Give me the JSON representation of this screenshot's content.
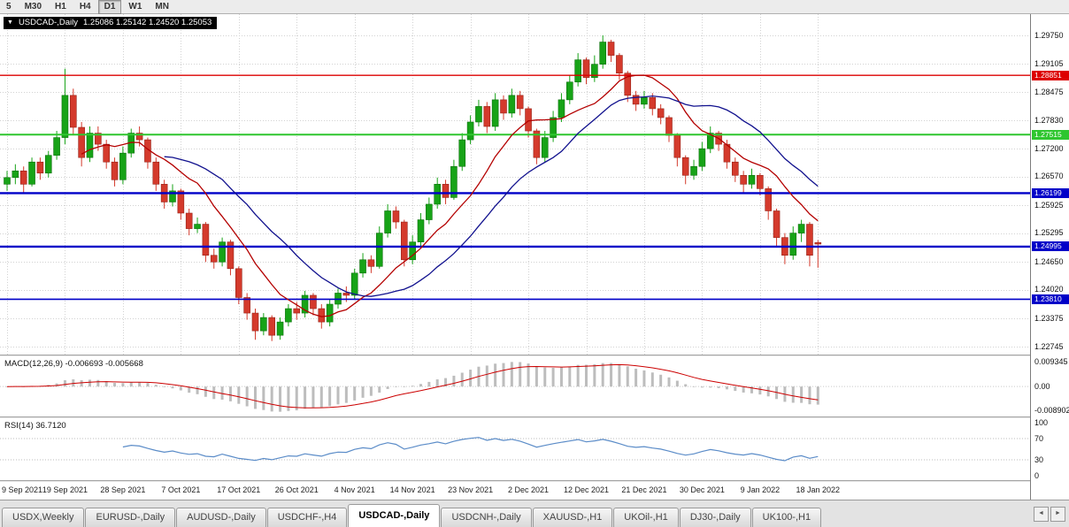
{
  "toolbar": {
    "timeframes": [
      {
        "label": "5",
        "active": false
      },
      {
        "label": "M30",
        "active": false
      },
      {
        "label": "H1",
        "active": false
      },
      {
        "label": "H4",
        "active": false
      },
      {
        "label": "D1",
        "active": true
      },
      {
        "label": "W1",
        "active": false
      },
      {
        "label": "MN",
        "active": false
      }
    ]
  },
  "chart_title": {
    "dropdown_icon": "▼",
    "symbol": "USDCAD-,Daily",
    "ohlc": "1.25086 1.25142 1.24520 1.25053"
  },
  "chart_data": {
    "type": "candlestick",
    "symbol": "USDCAD",
    "timeframe": "Daily",
    "y_axis_labels": [
      "1.29750",
      "1.29105",
      "1.28475",
      "1.27830",
      "1.27200",
      "1.26570",
      "1.25925",
      "1.25295",
      "1.24650",
      "1.24020",
      "1.23375",
      "1.22745"
    ],
    "y_top": 1.2975,
    "y_bottom": 1.22745,
    "x_labels": [
      "9 Sep 2021",
      "19 Sep 2021",
      "28 Sep 2021",
      "7 Oct 2021",
      "17 Oct 2021",
      "26 Oct 2021",
      "4 Nov 2021",
      "14 Nov 2021",
      "23 Nov 2021",
      "2 Dec 2021",
      "12 Dec 2021",
      "21 Dec 2021",
      "30 Dec 2021",
      "9 Jan 2022",
      "18 Jan 2022"
    ],
    "bars_per_label": 7,
    "hlines": [
      {
        "value": 1.28851,
        "label": "1.28851",
        "color": "#dd0000",
        "width": 1.4
      },
      {
        "value": 1.27515,
        "label": "1.27515",
        "color": "#2fc62f",
        "width": 2.0
      },
      {
        "value": 1.26199,
        "label": "1.26199",
        "color": "#0000c8",
        "width": 2.4
      },
      {
        "value": 1.24995,
        "label": "1.24995",
        "color": "#0000c8",
        "width": 2.4
      },
      {
        "value": 1.2381,
        "label": "1.23810",
        "color": "#0000c8",
        "width": 1.6
      }
    ],
    "colors": {
      "up": "#17a317",
      "up_edge": "#0c700c",
      "down": "#d43a2c",
      "down_edge": "#962318",
      "ma_fast": "#b40000",
      "ma_slow": "#11118e",
      "grid": "#d2d2d2"
    },
    "ma_fast_period": 10,
    "ma_slow_period": 20,
    "candles": [
      [
        1.264,
        1.267,
        1.2625,
        1.2655
      ],
      [
        1.2655,
        1.2685,
        1.264,
        1.267
      ],
      [
        1.267,
        1.268,
        1.262,
        1.264
      ],
      [
        1.264,
        1.27,
        1.2635,
        1.269
      ],
      [
        1.269,
        1.27,
        1.265,
        1.2665
      ],
      [
        1.2665,
        1.2715,
        1.2655,
        1.2705
      ],
      [
        1.2705,
        1.276,
        1.2695,
        1.2745
      ],
      [
        1.2745,
        1.29,
        1.273,
        1.284
      ],
      [
        1.284,
        1.2855,
        1.275,
        1.2768
      ],
      [
        1.2768,
        1.278,
        1.268,
        1.27
      ],
      [
        1.27,
        1.277,
        1.269,
        1.2755
      ],
      [
        1.2755,
        1.277,
        1.2715,
        1.273
      ],
      [
        1.273,
        1.274,
        1.2675,
        1.269
      ],
      [
        1.269,
        1.27,
        1.2635,
        1.265
      ],
      [
        1.265,
        1.2725,
        1.264,
        1.271
      ],
      [
        1.271,
        1.2765,
        1.27,
        1.2755
      ],
      [
        1.2755,
        1.277,
        1.2725,
        1.274
      ],
      [
        1.274,
        1.2745,
        1.2675,
        1.269
      ],
      [
        1.269,
        1.27,
        1.2625,
        1.264
      ],
      [
        1.264,
        1.265,
        1.2585,
        1.26
      ],
      [
        1.26,
        1.264,
        1.259,
        1.2625
      ],
      [
        1.2625,
        1.263,
        1.256,
        1.2575
      ],
      [
        1.2575,
        1.2585,
        1.2525,
        1.254
      ],
      [
        1.254,
        1.2565,
        1.253,
        1.255
      ],
      [
        1.255,
        1.2555,
        1.2465,
        1.248
      ],
      [
        1.248,
        1.2495,
        1.245,
        1.2465
      ],
      [
        1.2465,
        1.252,
        1.2455,
        1.251
      ],
      [
        1.251,
        1.2515,
        1.2435,
        1.245
      ],
      [
        1.245,
        1.2455,
        1.237,
        1.2385
      ],
      [
        1.2385,
        1.2395,
        1.2335,
        1.235
      ],
      [
        1.235,
        1.236,
        1.229,
        1.231
      ],
      [
        1.231,
        1.235,
        1.23,
        1.234
      ],
      [
        1.234,
        1.2345,
        1.2287,
        1.23
      ],
      [
        1.23,
        1.234,
        1.229,
        1.233
      ],
      [
        1.233,
        1.237,
        1.232,
        1.236
      ],
      [
        1.236,
        1.2375,
        1.2335,
        1.235
      ],
      [
        1.235,
        1.24,
        1.234,
        1.239
      ],
      [
        1.239,
        1.2395,
        1.2345,
        1.236
      ],
      [
        1.236,
        1.237,
        1.2315,
        1.233
      ],
      [
        1.233,
        1.238,
        1.232,
        1.237
      ],
      [
        1.237,
        1.2405,
        1.236,
        1.2395
      ],
      [
        1.2395,
        1.241,
        1.2375,
        1.239
      ],
      [
        1.239,
        1.245,
        1.238,
        1.244
      ],
      [
        1.244,
        1.2485,
        1.243,
        1.247
      ],
      [
        1.247,
        1.248,
        1.244,
        1.2455
      ],
      [
        1.2455,
        1.2545,
        1.245,
        1.253
      ],
      [
        1.253,
        1.2595,
        1.252,
        1.258
      ],
      [
        1.258,
        1.259,
        1.254,
        1.2555
      ],
      [
        1.2555,
        1.256,
        1.2455,
        1.247
      ],
      [
        1.247,
        1.2525,
        1.246,
        1.251
      ],
      [
        1.251,
        1.2575,
        1.25,
        1.256
      ],
      [
        1.256,
        1.261,
        1.255,
        1.2595
      ],
      [
        1.2595,
        1.2655,
        1.2585,
        1.264
      ],
      [
        1.264,
        1.265,
        1.2595,
        1.261
      ],
      [
        1.261,
        1.2695,
        1.2605,
        1.268
      ],
      [
        1.268,
        1.2755,
        1.267,
        1.274
      ],
      [
        1.274,
        1.2795,
        1.273,
        1.278
      ],
      [
        1.278,
        1.283,
        1.277,
        1.2815
      ],
      [
        1.2815,
        1.2825,
        1.2755,
        1.277
      ],
      [
        1.277,
        1.2845,
        1.276,
        1.283
      ],
      [
        1.283,
        1.284,
        1.2785,
        1.28
      ],
      [
        1.28,
        1.2855,
        1.279,
        1.284
      ],
      [
        1.284,
        1.285,
        1.2795,
        1.281
      ],
      [
        1.281,
        1.2815,
        1.2745,
        1.276
      ],
      [
        1.276,
        1.2765,
        1.2685,
        1.27
      ],
      [
        1.27,
        1.276,
        1.269,
        1.2745
      ],
      [
        1.2745,
        1.2805,
        1.2735,
        1.279
      ],
      [
        1.279,
        1.2845,
        1.278,
        1.283
      ],
      [
        1.283,
        1.2885,
        1.282,
        1.287
      ],
      [
        1.287,
        1.2935,
        1.286,
        1.292
      ],
      [
        1.292,
        1.2925,
        1.2865,
        1.288
      ],
      [
        1.288,
        1.293,
        1.287,
        1.291
      ],
      [
        1.291,
        1.2975,
        1.29,
        1.296
      ],
      [
        1.296,
        1.2965,
        1.2915,
        1.293
      ],
      [
        1.293,
        1.2935,
        1.2875,
        1.289
      ],
      [
        1.289,
        1.2895,
        1.2825,
        1.284
      ],
      [
        1.284,
        1.285,
        1.2805,
        1.282
      ],
      [
        1.282,
        1.285,
        1.281,
        1.2835
      ],
      [
        1.2835,
        1.2845,
        1.2795,
        1.281
      ],
      [
        1.281,
        1.282,
        1.2775,
        1.279
      ],
      [
        1.279,
        1.2795,
        1.2735,
        1.275
      ],
      [
        1.275,
        1.2755,
        1.268,
        1.27
      ],
      [
        1.27,
        1.2705,
        1.264,
        1.266
      ],
      [
        1.266,
        1.2695,
        1.265,
        1.268
      ],
      [
        1.268,
        1.2735,
        1.267,
        1.272
      ],
      [
        1.272,
        1.277,
        1.271,
        1.2755
      ],
      [
        1.2755,
        1.276,
        1.2715,
        1.273
      ],
      [
        1.273,
        1.274,
        1.2675,
        1.269
      ],
      [
        1.269,
        1.27,
        1.2645,
        1.266
      ],
      [
        1.266,
        1.267,
        1.262,
        1.264
      ],
      [
        1.264,
        1.2675,
        1.263,
        1.266
      ],
      [
        1.266,
        1.2665,
        1.2615,
        1.263
      ],
      [
        1.263,
        1.2635,
        1.256,
        1.258
      ],
      [
        1.258,
        1.2585,
        1.25,
        1.252
      ],
      [
        1.252,
        1.253,
        1.246,
        1.248
      ],
      [
        1.248,
        1.2545,
        1.247,
        1.253
      ],
      [
        1.253,
        1.256,
        1.251,
        1.255
      ],
      [
        1.255,
        1.2555,
        1.2455,
        1.248
      ],
      [
        1.25086,
        1.25142,
        1.2452,
        1.25053
      ]
    ],
    "macd": {
      "label": "MACD(12,26,9) -0.006693 -0.005668",
      "fast": 12,
      "slow": 26,
      "signal": 9,
      "axis_labels": [
        "0.009345",
        "0.00",
        "-0.008902"
      ],
      "axis_max": 0.009345,
      "axis_min": -0.008902,
      "hist_color": "#bdbdbd",
      "signal_color": "#cc0000"
    },
    "rsi": {
      "label": "RSI(14) 36.7120",
      "period": 14,
      "axis_labels": [
        "100",
        "70",
        "30",
        "0"
      ],
      "levels": [
        70,
        30
      ],
      "color": "#5b8cc8"
    }
  },
  "tabs": {
    "items": [
      {
        "label": "USDX,Weekly",
        "active": false
      },
      {
        "label": "EURUSD-,Daily",
        "active": false
      },
      {
        "label": "AUDUSD-,Daily",
        "active": false
      },
      {
        "label": "USDCHF-,H4",
        "active": false
      },
      {
        "label": "USDCAD-,Daily",
        "active": true
      },
      {
        "label": "USDCNH-,Daily",
        "active": false
      },
      {
        "label": "XAUUSD-,H1",
        "active": false
      },
      {
        "label": "UKOil-,H1",
        "active": false
      },
      {
        "label": "DJ30-,Daily",
        "active": false
      },
      {
        "label": "UK100-,H1",
        "active": false
      }
    ],
    "scroll_left": "◄",
    "scroll_right": "►"
  }
}
